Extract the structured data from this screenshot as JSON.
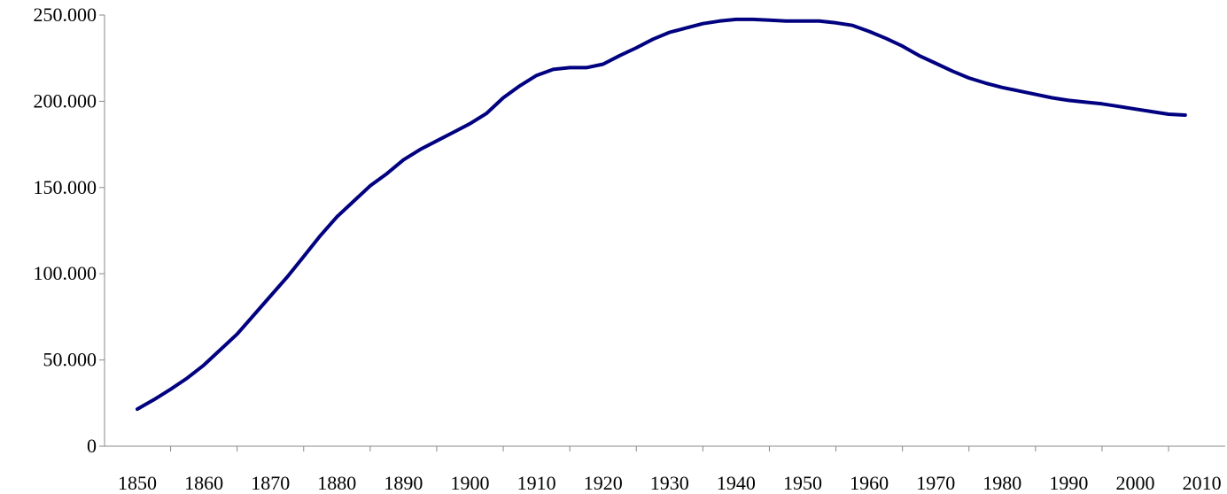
{
  "chart_data": {
    "type": "line",
    "title": "",
    "xlabel": "",
    "ylabel": "",
    "x_ticks": [
      "1850",
      "1860",
      "1870",
      "1880",
      "1890",
      "1900",
      "1910",
      "1920",
      "1930",
      "1940",
      "1950",
      "1960",
      "1970",
      "1980",
      "1990",
      "2000",
      "2010"
    ],
    "y_ticks": [
      "250.000",
      "200.000",
      "150.000",
      "100.000",
      "50.000",
      "0"
    ],
    "ylim": [
      0,
      250000
    ],
    "grid": false,
    "legend": "none",
    "line_color": "#000080",
    "series": [
      {
        "x": [
          1850,
          1852.5,
          1855,
          1857.5,
          1860,
          1862.5,
          1865,
          1867.5,
          1870,
          1872.5,
          1875,
          1877.5,
          1880,
          1882.5,
          1885,
          1887.5,
          1890,
          1892.5,
          1895,
          1897.5,
          1900,
          1902.5,
          1905,
          1907.5,
          1910,
          1912.5,
          1915,
          1917.5,
          1920,
          1922.5,
          1925,
          1927.5,
          1930,
          1932.5,
          1935,
          1937.5,
          1940,
          1942.5,
          1945,
          1947.5,
          1950,
          1952.5,
          1955,
          1957.5,
          1960,
          1962.5,
          1965,
          1967.5,
          1970,
          1972.5,
          1975,
          1977.5,
          1980,
          1982.5,
          1985,
          1987.5,
          1990,
          1992.5,
          1995,
          1997.5,
          2000,
          2002.5,
          2005,
          2007.5
        ],
        "values": [
          21500,
          27000,
          33000,
          39500,
          47000,
          56000,
          65000,
          76000,
          87000,
          98000,
          110000,
          122000,
          133000,
          142000,
          151000,
          158000,
          166000,
          172000,
          177000,
          182000,
          187000,
          193000,
          202000,
          209000,
          215000,
          218500,
          219500,
          219500,
          221500,
          226500,
          231000,
          236000,
          240000,
          242500,
          245000,
          246500,
          247500,
          247500,
          247000,
          246500,
          246500,
          246500,
          245500,
          244000,
          240500,
          236500,
          232000,
          226500,
          222000,
          217500,
          213500,
          210500,
          208000,
          206000,
          204000,
          202000,
          200500,
          199500,
          198500,
          197000,
          195500,
          194000,
          192500,
          192000
        ]
      }
    ]
  }
}
